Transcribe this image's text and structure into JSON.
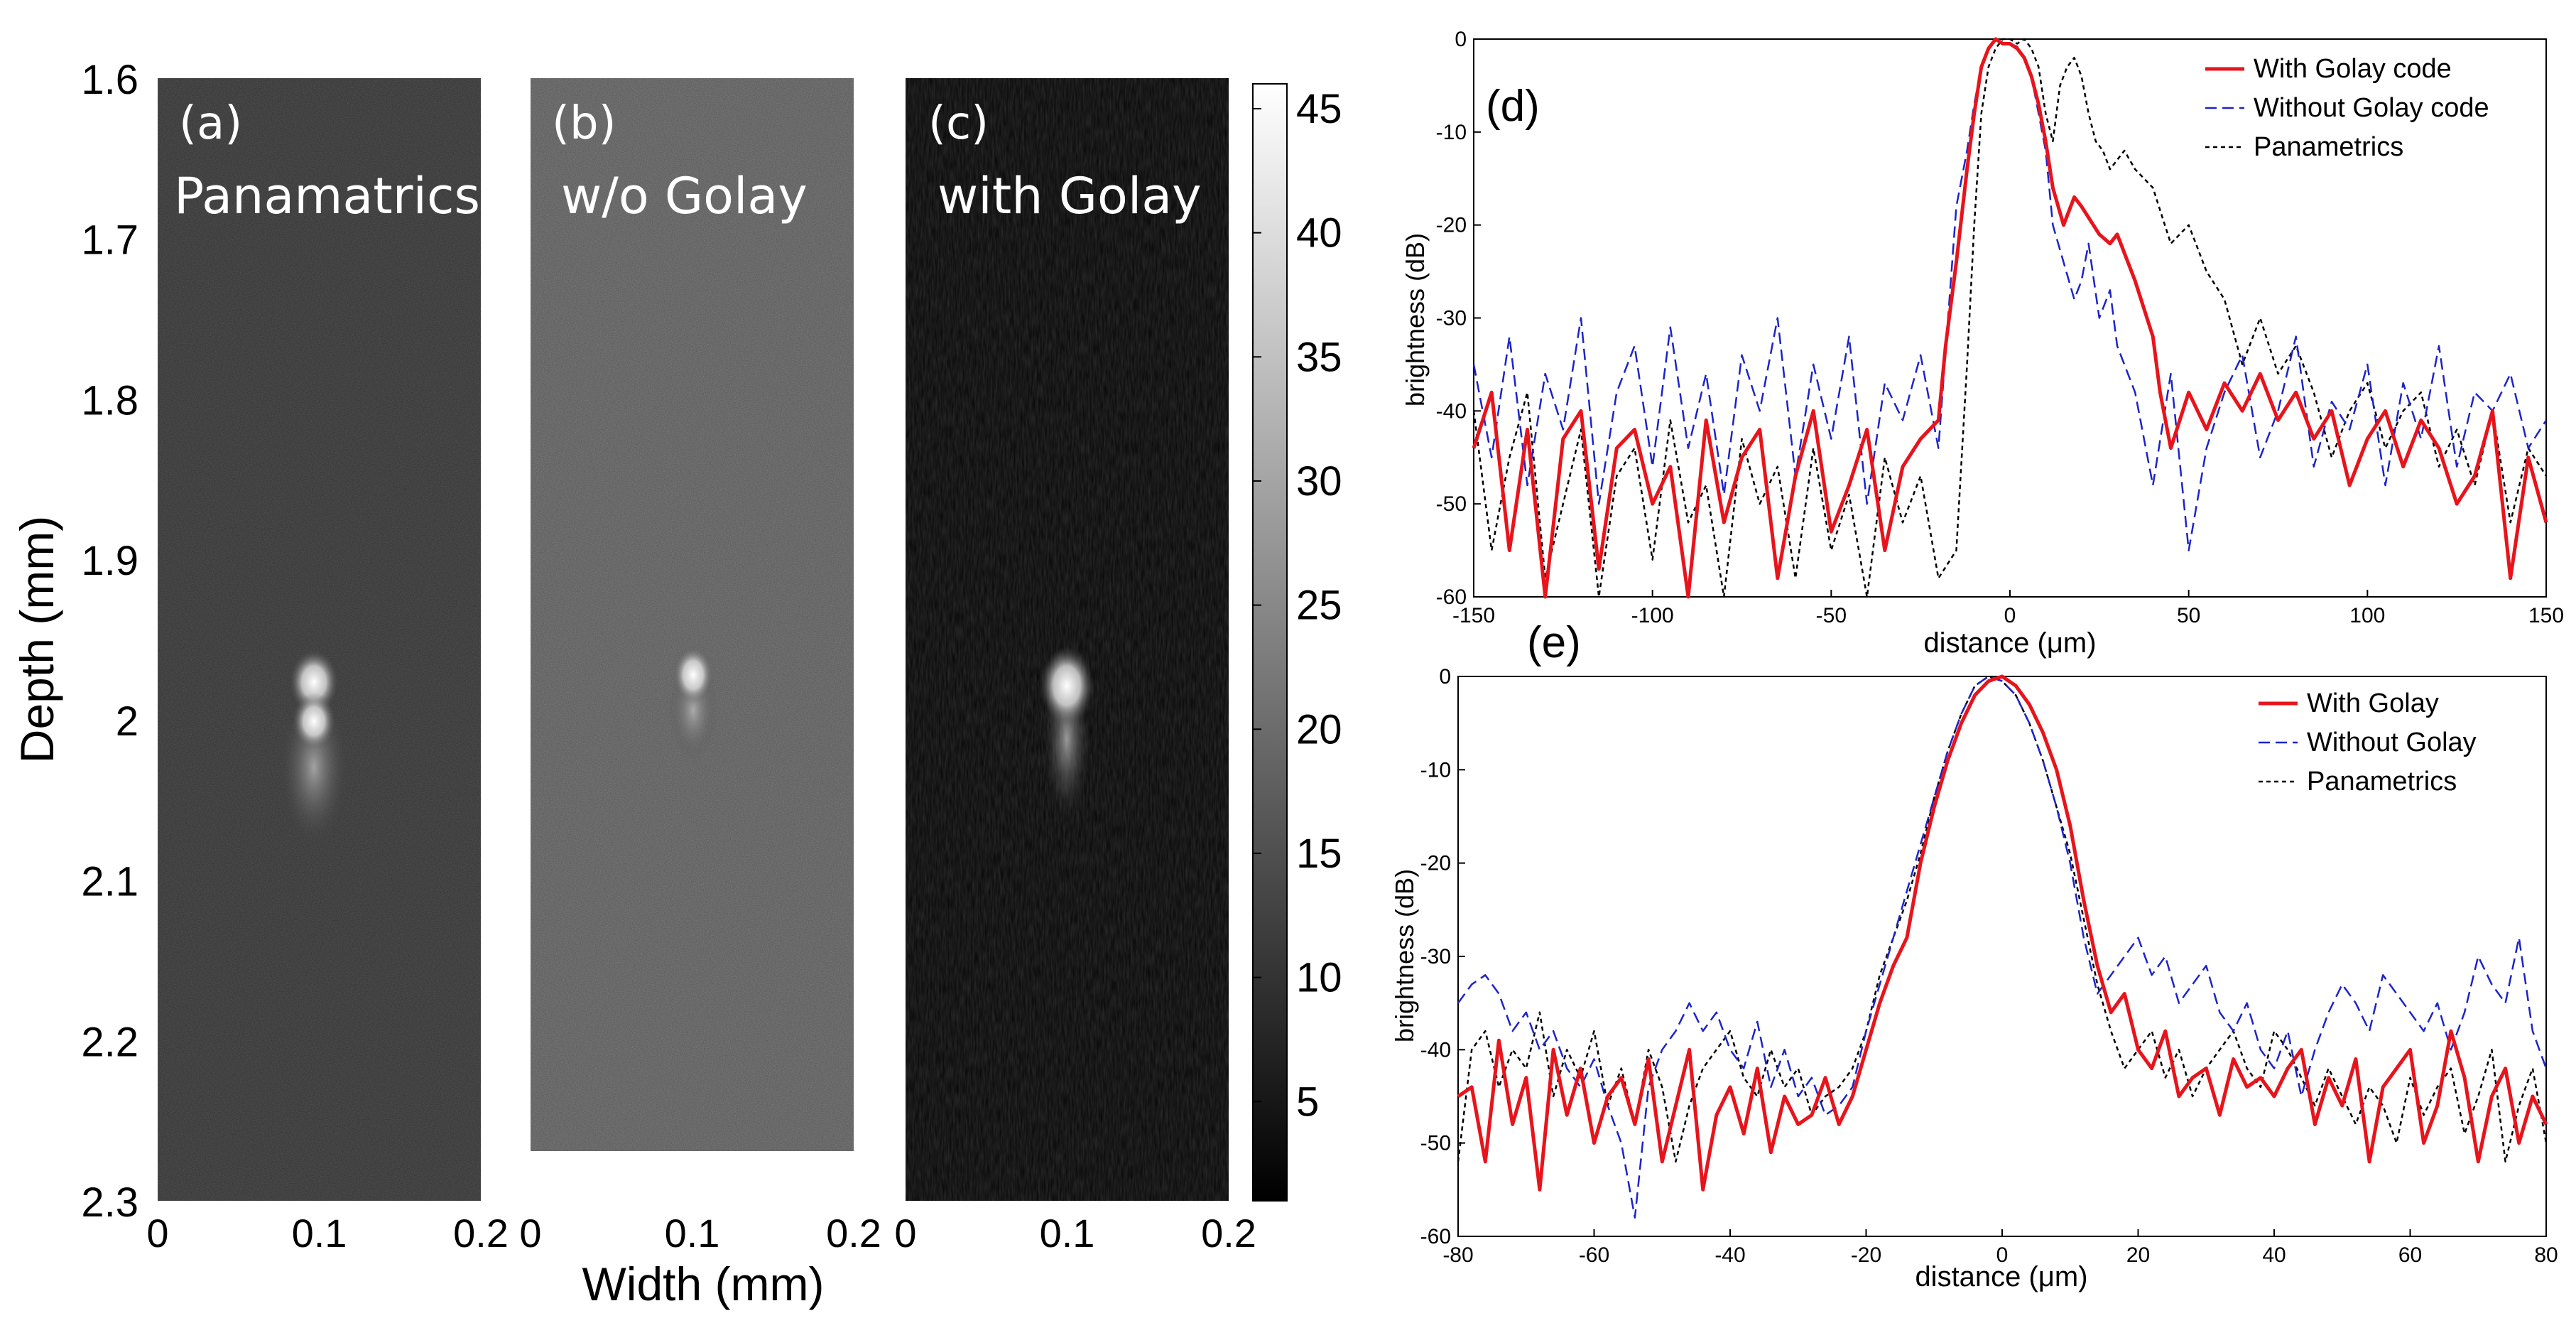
{
  "chart_data": [
    {
      "type": "heatmap",
      "panels": [
        {
          "label": "(a)",
          "title": "Panamatrics",
          "peak_x": 0.1,
          "peak_depth": 1.995
        },
        {
          "label": "(b)",
          "title": "w/o Golay",
          "peak_x": 0.1,
          "peak_depth": 1.98
        },
        {
          "label": "(c)",
          "title": "with Golay",
          "peak_x": 0.1,
          "peak_depth": 1.985
        }
      ],
      "xlabel": "Width (mm)",
      "ylabel": "Depth (mm)",
      "xlim": [
        0,
        0.2
      ],
      "ylim": [
        1.6,
        2.3
      ],
      "x_ticks": [
        "0",
        "0.1",
        "0.2"
      ],
      "y_ticks": [
        "1.6",
        "1.7",
        "1.8",
        "1.9",
        "2",
        "2.1",
        "2.2",
        "2.3"
      ],
      "colorbar": {
        "range": [
          1,
          46
        ],
        "ticks": [
          "5",
          "10",
          "15",
          "20",
          "25",
          "30",
          "35",
          "40",
          "45"
        ],
        "colormap": "gray"
      }
    },
    {
      "type": "line",
      "panel_label": "(d)",
      "xlabel": "distance (μm)",
      "ylabel": "brightness (dB)",
      "xlim": [
        -150,
        150
      ],
      "ylim": [
        -60,
        0
      ],
      "x_ticks": [
        "-150",
        "-100",
        "-50",
        "0",
        "50",
        "100",
        "150"
      ],
      "y_ticks": [
        "0",
        "-10",
        "-20",
        "-30",
        "-40",
        "-50",
        "-60"
      ],
      "series": [
        {
          "name": "With Golay code",
          "color": "#e8141c",
          "style": "solid",
          "x": [
            -150,
            -145,
            -140,
            -135,
            -130,
            -125,
            -120,
            -115,
            -110,
            -105,
            -100,
            -95,
            -90,
            -85,
            -80,
            -75,
            -70,
            -65,
            -60,
            -55,
            -50,
            -45,
            -40,
            -35,
            -30,
            -25,
            -20,
            -18,
            -15,
            -12,
            -10,
            -8,
            -6,
            -4,
            -2,
            0,
            2,
            4,
            6,
            8,
            10,
            12,
            15,
            18,
            20,
            25,
            28,
            30,
            35,
            40,
            42,
            45,
            50,
            55,
            60,
            65,
            70,
            75,
            80,
            85,
            90,
            95,
            100,
            105,
            110,
            115,
            120,
            125,
            130,
            135,
            140,
            145,
            150
          ],
          "y": [
            -44,
            -38,
            -55,
            -42,
            -60,
            -43,
            -40,
            -57,
            -44,
            -42,
            -50,
            -46,
            -60,
            -41,
            -52,
            -45,
            -42,
            -58,
            -47,
            -40,
            -53,
            -48,
            -42,
            -55,
            -46,
            -43,
            -41,
            -33,
            -24,
            -14,
            -8,
            -3,
            -1,
            0,
            -0.5,
            -0.5,
            -1,
            -2,
            -4,
            -7,
            -11,
            -16,
            -20,
            -17,
            -18,
            -21,
            -22,
            -21,
            -26,
            -32,
            -38,
            -44,
            -38,
            -42,
            -37,
            -40,
            -36,
            -41,
            -38,
            -43,
            -40,
            -48,
            -43,
            -40,
            -46,
            -41,
            -44,
            -50,
            -47,
            -40,
            -58,
            -45,
            -52
          ]
        },
        {
          "name": "Without Golay code",
          "color": "#1c24c8",
          "style": "dashed",
          "x": [
            -150,
            -145,
            -140,
            -135,
            -130,
            -125,
            -120,
            -115,
            -110,
            -105,
            -100,
            -95,
            -90,
            -85,
            -80,
            -75,
            -70,
            -65,
            -60,
            -55,
            -50,
            -45,
            -40,
            -35,
            -30,
            -25,
            -20,
            -15,
            -12,
            -10,
            -8,
            -6,
            -4,
            -2,
            0,
            2,
            4,
            6,
            8,
            10,
            12,
            15,
            18,
            20,
            22,
            25,
            28,
            30,
            35,
            40,
            45,
            50,
            55,
            60,
            65,
            70,
            75,
            80,
            85,
            90,
            95,
            100,
            105,
            110,
            115,
            120,
            125,
            130,
            135,
            140,
            145,
            150
          ],
          "y": [
            -35,
            -45,
            -32,
            -48,
            -36,
            -42,
            -30,
            -50,
            -38,
            -33,
            -46,
            -31,
            -44,
            -36,
            -49,
            -34,
            -40,
            -30,
            -47,
            -35,
            -43,
            -32,
            -50,
            -37,
            -41,
            -34,
            -44,
            -18,
            -12,
            -7,
            -3,
            -1,
            0,
            -0.5,
            -0.5,
            -0.8,
            -2,
            -4,
            -8,
            -12,
            -20,
            -24,
            -28,
            -26,
            -22,
            -30,
            -27,
            -33,
            -38,
            -48,
            -36,
            -55,
            -44,
            -38,
            -34,
            -45,
            -40,
            -32,
            -46,
            -39,
            -42,
            -35,
            -48,
            -37,
            -43,
            -33,
            -46,
            -38,
            -40,
            -36,
            -44,
            -41
          ]
        },
        {
          "name": "Panametrics",
          "color": "#000000",
          "style": "dotted",
          "x": [
            -150,
            -145,
            -140,
            -135,
            -130,
            -125,
            -120,
            -115,
            -110,
            -105,
            -100,
            -95,
            -90,
            -85,
            -80,
            -75,
            -70,
            -65,
            -60,
            -55,
            -50,
            -45,
            -40,
            -35,
            -30,
            -25,
            -20,
            -15,
            -12,
            -10,
            -8,
            -6,
            -4,
            -2,
            0,
            2,
            4,
            6,
            8,
            10,
            12,
            14,
            16,
            18,
            20,
            22,
            24,
            26,
            28,
            30,
            32,
            35,
            40,
            45,
            50,
            55,
            60,
            65,
            70,
            75,
            80,
            85,
            90,
            95,
            100,
            105,
            110,
            115,
            120,
            125,
            130,
            135,
            140,
            145,
            150
          ],
          "y": [
            -40,
            -55,
            -45,
            -38,
            -58,
            -50,
            -42,
            -60,
            -47,
            -44,
            -56,
            -41,
            -52,
            -48,
            -60,
            -43,
            -50,
            -46,
            -58,
            -44,
            -55,
            -49,
            -60,
            -45,
            -52,
            -47,
            -58,
            -55,
            -35,
            -20,
            -8,
            -3,
            -1,
            0,
            0,
            -0.5,
            0,
            -1,
            -3,
            -8,
            -11,
            -5,
            -3,
            -2,
            -4,
            -8,
            -11,
            -12,
            -14,
            -13,
            -12,
            -14,
            -16,
            -22,
            -20,
            -25,
            -28,
            -35,
            -30,
            -36,
            -33,
            -38,
            -45,
            -40,
            -37,
            -44,
            -40,
            -38,
            -46,
            -42,
            -48,
            -40,
            -52,
            -44,
            -47
          ]
        }
      ]
    },
    {
      "type": "line",
      "panel_label": "(e)",
      "xlabel": "distance (μm)",
      "ylabel": "brightness (dB)",
      "xlim": [
        -80,
        80
      ],
      "ylim": [
        -60,
        0
      ],
      "x_ticks": [
        "-80",
        "-60",
        "-40",
        "-20",
        "0",
        "20",
        "40",
        "60",
        "80"
      ],
      "y_ticks": [
        "0",
        "-10",
        "-20",
        "-30",
        "-40",
        "-50",
        "-60"
      ],
      "series": [
        {
          "name": "With Golay",
          "color": "#e8141c",
          "style": "solid",
          "x": [
            -80,
            -78,
            -76,
            -74,
            -72,
            -70,
            -68,
            -66,
            -64,
            -62,
            -60,
            -58,
            -56,
            -54,
            -52,
            -50,
            -48,
            -46,
            -44,
            -42,
            -40,
            -38,
            -36,
            -34,
            -32,
            -30,
            -28,
            -26,
            -24,
            -22,
            -20,
            -18,
            -16,
            -14,
            -12,
            -10,
            -8,
            -6,
            -4,
            -2,
            0,
            2,
            4,
            6,
            8,
            10,
            12,
            14,
            16,
            18,
            20,
            22,
            24,
            26,
            28,
            30,
            32,
            34,
            36,
            38,
            40,
            42,
            44,
            46,
            48,
            50,
            52,
            54,
            56,
            58,
            60,
            62,
            64,
            66,
            68,
            70,
            72,
            74,
            76,
            78,
            80
          ],
          "y": [
            -45,
            -44,
            -52,
            -39,
            -48,
            -43,
            -55,
            -40,
            -47,
            -42,
            -50,
            -45,
            -43,
            -48,
            -41,
            -52,
            -46,
            -40,
            -55,
            -47,
            -44,
            -49,
            -42,
            -51,
            -45,
            -48,
            -47,
            -43,
            -48,
            -45,
            -40,
            -35,
            -31,
            -28,
            -20,
            -14,
            -9,
            -5,
            -2,
            -0.5,
            0,
            -1,
            -3,
            -6,
            -10,
            -16,
            -24,
            -31,
            -36,
            -34,
            -40,
            -42,
            -38,
            -45,
            -43,
            -42,
            -47,
            -41,
            -44,
            -43,
            -45,
            -42,
            -40,
            -48,
            -43,
            -46,
            -41,
            -52,
            -44,
            -42,
            -40,
            -50,
            -46,
            -38,
            -43,
            -52,
            -45,
            -42,
            -50,
            -45,
            -48
          ]
        },
        {
          "name": "Without Golay",
          "color": "#1c24c8",
          "style": "dashed",
          "x": [
            -80,
            -78,
            -76,
            -74,
            -72,
            -70,
            -68,
            -66,
            -64,
            -62,
            -60,
            -58,
            -56,
            -54,
            -52,
            -50,
            -48,
            -46,
            -44,
            -42,
            -40,
            -38,
            -36,
            -34,
            -32,
            -30,
            -28,
            -26,
            -24,
            -22,
            -20,
            -18,
            -16,
            -14,
            -12,
            -10,
            -8,
            -6,
            -4,
            -2,
            0,
            2,
            4,
            6,
            8,
            10,
            12,
            14,
            16,
            18,
            20,
            22,
            24,
            26,
            28,
            30,
            32,
            34,
            36,
            38,
            40,
            42,
            44,
            46,
            48,
            50,
            52,
            54,
            56,
            58,
            60,
            62,
            64,
            66,
            68,
            70,
            72,
            74,
            76,
            78,
            80
          ],
          "y": [
            -35,
            -33,
            -32,
            -34,
            -38,
            -36,
            -40,
            -38,
            -42,
            -44,
            -41,
            -46,
            -50,
            -58,
            -44,
            -40,
            -38,
            -35,
            -38,
            -36,
            -40,
            -42,
            -37,
            -44,
            -40,
            -45,
            -43,
            -47,
            -46,
            -44,
            -38,
            -33,
            -28,
            -23,
            -18,
            -13,
            -8,
            -4,
            -1,
            0,
            -0.5,
            -2,
            -5,
            -9,
            -14,
            -20,
            -28,
            -34,
            -32,
            -30,
            -28,
            -32,
            -30,
            -35,
            -33,
            -31,
            -36,
            -38,
            -35,
            -40,
            -42,
            -38,
            -45,
            -40,
            -36,
            -33,
            -35,
            -38,
            -32,
            -34,
            -36,
            -38,
            -35,
            -40,
            -36,
            -30,
            -33,
            -35,
            -28,
            -38,
            -42
          ]
        },
        {
          "name": "Panametrics",
          "color": "#000000",
          "style": "dotted",
          "x": [
            -80,
            -78,
            -76,
            -74,
            -72,
            -70,
            -68,
            -66,
            -64,
            -62,
            -60,
            -58,
            -56,
            -54,
            -52,
            -50,
            -48,
            -46,
            -44,
            -42,
            -40,
            -38,
            -36,
            -34,
            -32,
            -30,
            -28,
            -26,
            -24,
            -22,
            -20,
            -18,
            -16,
            -14,
            -12,
            -10,
            -8,
            -6,
            -4,
            -2,
            0,
            2,
            4,
            6,
            8,
            10,
            12,
            14,
            16,
            18,
            20,
            22,
            24,
            26,
            28,
            30,
            32,
            34,
            36,
            38,
            40,
            42,
            44,
            46,
            48,
            50,
            52,
            54,
            56,
            58,
            60,
            62,
            64,
            66,
            68,
            70,
            72,
            74,
            76,
            78,
            80
          ],
          "y": [
            -52,
            -40,
            -38,
            -44,
            -40,
            -42,
            -36,
            -45,
            -40,
            -43,
            -38,
            -46,
            -42,
            -48,
            -40,
            -44,
            -52,
            -46,
            -42,
            -40,
            -38,
            -43,
            -45,
            -40,
            -44,
            -42,
            -47,
            -45,
            -44,
            -42,
            -38,
            -32,
            -28,
            -24,
            -19,
            -13,
            -8,
            -4,
            -1,
            0,
            -0.5,
            -2,
            -5,
            -9,
            -14,
            -19,
            -26,
            -33,
            -38,
            -42,
            -40,
            -38,
            -43,
            -40,
            -45,
            -42,
            -40,
            -38,
            -42,
            -44,
            -38,
            -40,
            -43,
            -46,
            -42,
            -45,
            -48,
            -44,
            -46,
            -50,
            -43,
            -47,
            -44,
            -42,
            -49,
            -45,
            -40,
            -52,
            -46,
            -42,
            -50
          ]
        }
      ]
    }
  ]
}
